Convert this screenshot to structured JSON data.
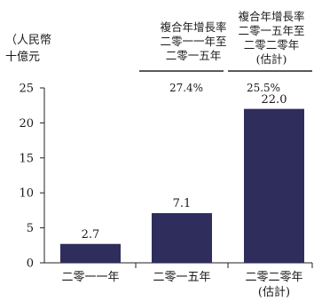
{
  "chart_data": {
    "type": "bar",
    "ylabel_lines": [
      "（人民幣",
      "十億元"
    ],
    "categories": [
      [
        "二零一一年"
      ],
      [
        "二零一五年"
      ],
      [
        "二零二零年",
        "(估計)"
      ]
    ],
    "values": [
      2.7,
      7.1,
      22.0
    ],
    "value_labels": [
      "2.7",
      "7.1",
      "22.0"
    ],
    "ylim": [
      0,
      25
    ],
    "yticks": [
      "0",
      "5",
      "10",
      "15",
      "20",
      "25"
    ],
    "grid": false,
    "bar_color": "#2e2d5c",
    "cagr": [
      {
        "heading": [
          "複合年增長率",
          "二零一一年至",
          "二零一五年"
        ],
        "value": "27.4%"
      },
      {
        "heading": [
          "複合年增長率",
          "二零一五年至",
          "二零二零年",
          "(估計)"
        ],
        "value": "25.5%"
      }
    ]
  }
}
